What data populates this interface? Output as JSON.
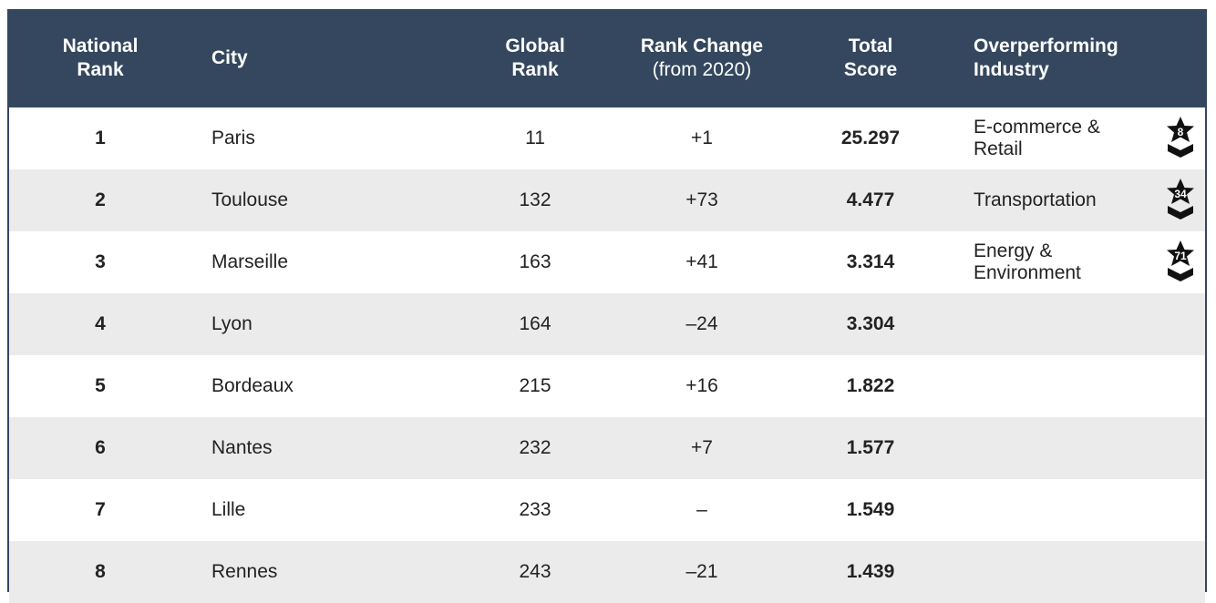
{
  "table": {
    "header": [
      {
        "lines": [
          "National",
          "Rank"
        ]
      },
      {
        "lines": [
          "City"
        ]
      },
      {
        "lines": [
          "Global",
          "Rank"
        ]
      },
      {
        "lines": [
          "Rank Change"
        ],
        "sub": "(from 2020)"
      },
      {
        "lines": [
          "Total",
          "Score"
        ]
      },
      {
        "lines": [
          "Overperforming",
          "Industry"
        ]
      }
    ],
    "rows": [
      {
        "rank": 1,
        "city": "Paris",
        "global_rank": 11,
        "rank_change": "+1",
        "total_score": "25.297",
        "industry": "E-commerce & Retail",
        "badge": 8
      },
      {
        "rank": 2,
        "city": "Toulouse",
        "global_rank": 132,
        "rank_change": "+73",
        "total_score": "4.477",
        "industry": "Transportation",
        "badge": 34
      },
      {
        "rank": 3,
        "city": "Marseille",
        "global_rank": 163,
        "rank_change": "+41",
        "total_score": "3.314",
        "industry": "Energy & Environment",
        "badge": 71
      },
      {
        "rank": 4,
        "city": "Lyon",
        "global_rank": 164,
        "rank_change": "–24",
        "total_score": "3.304"
      },
      {
        "rank": 5,
        "city": "Bordeaux",
        "global_rank": 215,
        "rank_change": "+16",
        "total_score": "1.822"
      },
      {
        "rank": 6,
        "city": "Nantes",
        "global_rank": 232,
        "rank_change": "+7",
        "total_score": "1.577"
      },
      {
        "rank": 7,
        "city": "Lille",
        "global_rank": 233,
        "rank_change": "–",
        "total_score": "1.549"
      },
      {
        "rank": 8,
        "city": "Rennes",
        "global_rank": 243,
        "rank_change": "–21",
        "total_score": "1.439"
      }
    ]
  }
}
